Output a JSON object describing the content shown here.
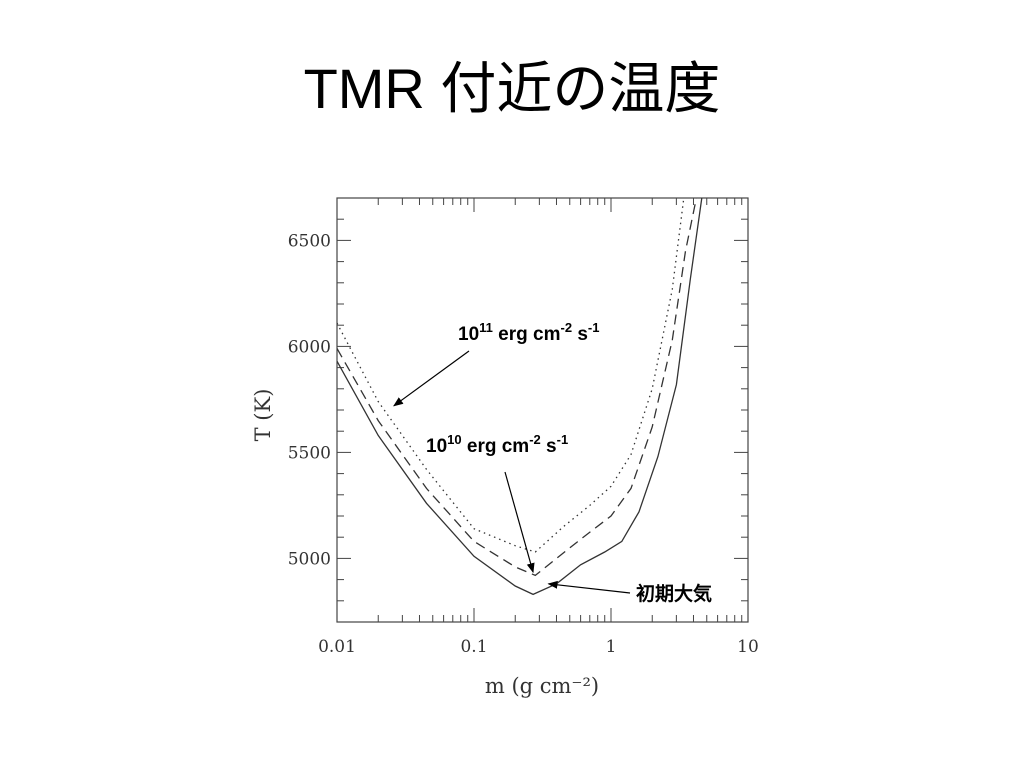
{
  "slide": {
    "title": "TMR 付近の温度"
  },
  "chart_data": {
    "type": "line",
    "title": "",
    "xlabel": "m (g cm⁻²)",
    "ylabel": "T (K)",
    "xscale": "log",
    "xlim": [
      0.01,
      10
    ],
    "ylim": [
      4700,
      6700
    ],
    "x_ticks": [
      0.01,
      0.1,
      1,
      10
    ],
    "x_tick_labels": [
      "0.01",
      "0.1",
      "1",
      "10"
    ],
    "y_ticks": [
      5000,
      5500,
      6000,
      6500
    ],
    "y_tick_labels": [
      "5000",
      "5500",
      "6000",
      "6500"
    ],
    "grid": false,
    "series": [
      {
        "style": "solid",
        "points": [
          [
            0.01,
            5930
          ],
          [
            0.02,
            5580
          ],
          [
            0.045,
            5260
          ],
          [
            0.1,
            5010
          ],
          [
            0.2,
            4870
          ],
          [
            0.27,
            4830
          ],
          [
            0.4,
            4880
          ],
          [
            0.6,
            4970
          ],
          [
            0.9,
            5030
          ],
          [
            1.2,
            5080
          ],
          [
            1.6,
            5220
          ],
          [
            2.2,
            5480
          ],
          [
            3.0,
            5820
          ],
          [
            3.8,
            6320
          ],
          [
            4.6,
            6700
          ]
        ]
      },
      {
        "style": "dashed",
        "points": [
          [
            0.01,
            5990
          ],
          [
            0.02,
            5650
          ],
          [
            0.045,
            5330
          ],
          [
            0.1,
            5080
          ],
          [
            0.2,
            4960
          ],
          [
            0.28,
            4920
          ],
          [
            0.4,
            5000
          ],
          [
            0.6,
            5090
          ],
          [
            1.0,
            5200
          ],
          [
            1.4,
            5330
          ],
          [
            2.0,
            5620
          ],
          [
            2.8,
            6030
          ],
          [
            3.5,
            6450
          ],
          [
            4.2,
            6700
          ]
        ]
      },
      {
        "style": "dotted",
        "points": [
          [
            0.01,
            6110
          ],
          [
            0.02,
            5740
          ],
          [
            0.045,
            5420
          ],
          [
            0.1,
            5140
          ],
          [
            0.2,
            5060
          ],
          [
            0.28,
            5030
          ],
          [
            0.45,
            5150
          ],
          [
            0.7,
            5250
          ],
          [
            1.0,
            5340
          ],
          [
            1.4,
            5490
          ],
          [
            2.0,
            5800
          ],
          [
            2.8,
            6270
          ],
          [
            3.4,
            6700
          ]
        ]
      }
    ],
    "annotations": [
      {
        "label": "10",
        "sup1": "11",
        "mid": " erg cm",
        "sup2": "-2",
        "end": " s",
        "sup3": "-1",
        "arrow_to": [
          0.026,
          5720
        ]
      },
      {
        "label": "10",
        "sup1": "10",
        "mid": " erg cm",
        "sup2": "-2",
        "end": " s",
        "sup3": "-1",
        "arrow_to": [
          0.27,
          4935
        ]
      },
      {
        "label": "初期大気",
        "arrow_to": [
          0.35,
          4880
        ]
      }
    ]
  }
}
